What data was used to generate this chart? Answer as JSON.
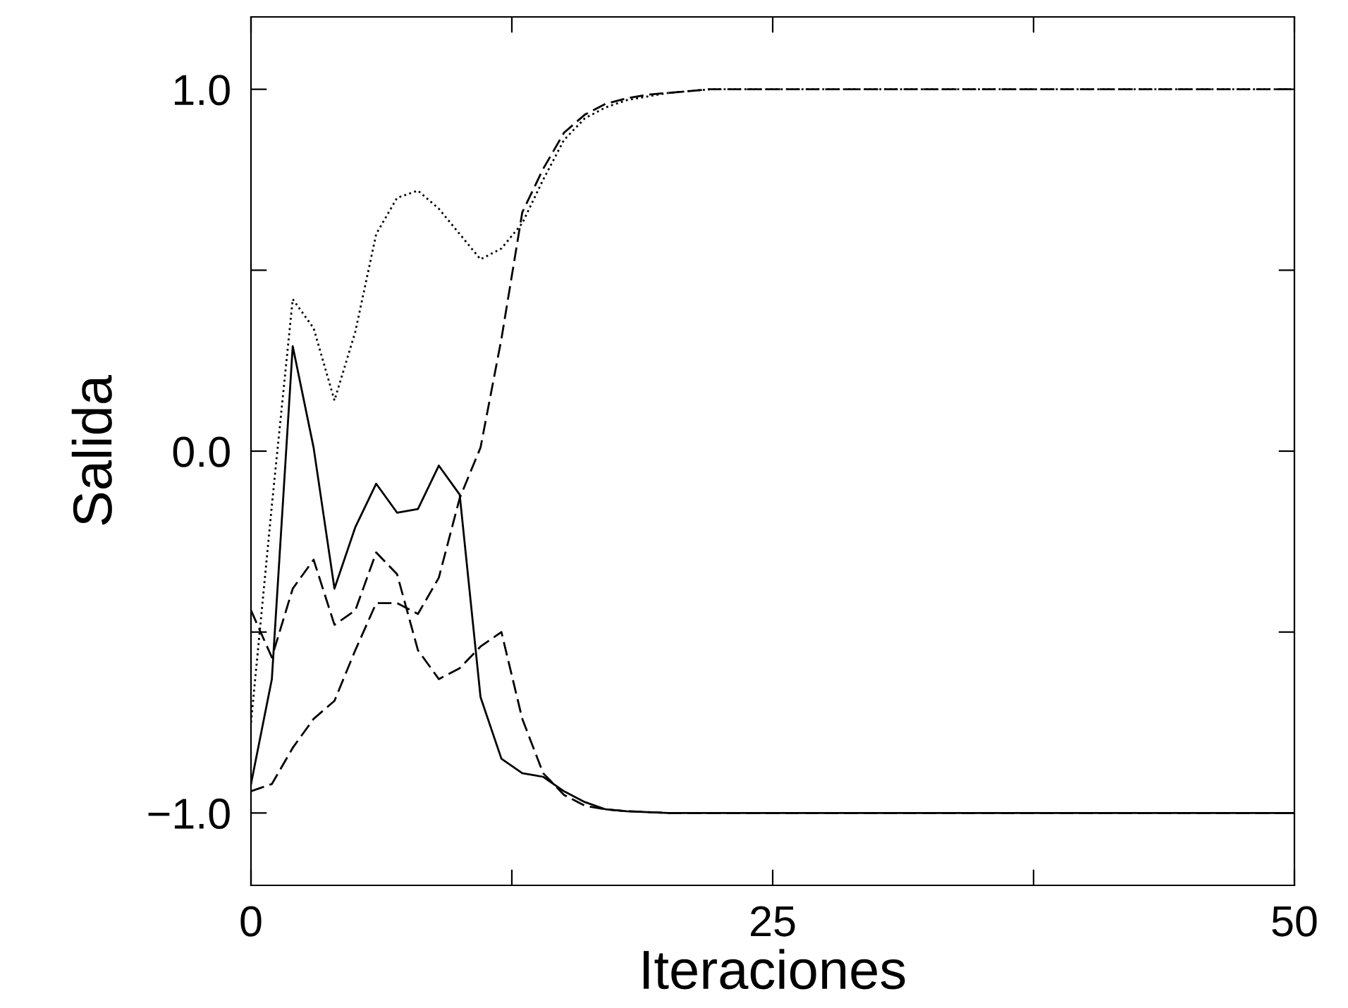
{
  "chart_data": {
    "type": "line",
    "xlabel": "Iteraciones",
    "ylabel": "Salida",
    "xlim": [
      0,
      50
    ],
    "ylim": [
      -1.2,
      1.2
    ],
    "xticks": [
      0,
      {
        "value": 12.5,
        "label": null
      },
      25,
      {
        "value": 37.5,
        "label": null
      },
      50
    ],
    "yticks": [
      {
        "value": -1.0,
        "label": "−1.0"
      },
      {
        "value": -0.5,
        "label": null
      },
      {
        "value": 0.0,
        "label": "0.0"
      },
      {
        "value": 0.5,
        "label": null
      },
      {
        "value": 1.0,
        "label": "1.0"
      }
    ],
    "grid": false,
    "marker": "none",
    "series": [
      {
        "color": "#000000",
        "line_style": "solid",
        "x": [
          0,
          1,
          2,
          3,
          4,
          5,
          6,
          7,
          8,
          9,
          10,
          11,
          12,
          13,
          14,
          15,
          16,
          17,
          18,
          20,
          50
        ],
        "values": [
          -0.92,
          -0.63,
          0.29,
          0.01,
          -0.38,
          -0.21,
          -0.09,
          -0.17,
          -0.16,
          -0.04,
          -0.12,
          -0.68,
          -0.85,
          -0.89,
          -0.9,
          -0.94,
          -0.97,
          -0.99,
          -0.995,
          -1.0,
          -1.0
        ]
      },
      {
        "color": "#000000",
        "line_style": "dotted",
        "x": [
          0,
          1,
          2,
          3,
          4,
          5,
          6,
          7,
          8,
          9,
          10,
          11,
          12,
          13,
          14,
          15,
          16,
          17,
          18,
          19,
          20,
          22,
          50
        ],
        "values": [
          -0.75,
          -0.15,
          0.42,
          0.34,
          0.14,
          0.33,
          0.6,
          0.7,
          0.72,
          0.67,
          0.6,
          0.53,
          0.56,
          0.63,
          0.75,
          0.86,
          0.92,
          0.95,
          0.97,
          0.98,
          0.99,
          1.0,
          1.0
        ]
      },
      {
        "color": "#000000",
        "line_style": "dashed",
        "x": [
          0,
          1,
          2,
          3,
          4,
          5,
          6,
          7,
          8,
          9,
          10,
          11,
          12,
          13,
          14,
          15,
          16,
          17,
          18,
          20,
          50
        ],
        "values": [
          -0.44,
          -0.57,
          -0.38,
          -0.3,
          -0.48,
          -0.44,
          -0.28,
          -0.34,
          -0.55,
          -0.63,
          -0.6,
          -0.54,
          -0.5,
          -0.74,
          -0.89,
          -0.95,
          -0.98,
          -0.99,
          -0.995,
          -1.0,
          -1.0
        ]
      },
      {
        "color": "#000000",
        "line_style": "dashed",
        "x": [
          0,
          1,
          2,
          3,
          4,
          5,
          6,
          7,
          8,
          9,
          10,
          11,
          12,
          13,
          14,
          15,
          16,
          17,
          18,
          19,
          20,
          22,
          50
        ],
        "values": [
          -0.94,
          -0.92,
          -0.82,
          -0.74,
          -0.69,
          -0.55,
          -0.42,
          -0.42,
          -0.45,
          -0.35,
          -0.13,
          0.01,
          0.31,
          0.66,
          0.78,
          0.88,
          0.93,
          0.96,
          0.975,
          0.985,
          0.99,
          1.0,
          1.0
        ]
      }
    ]
  }
}
